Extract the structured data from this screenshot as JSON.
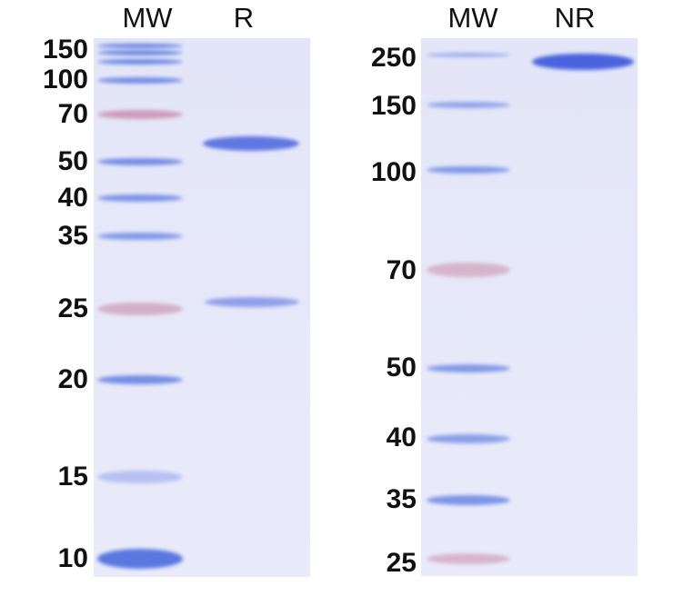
{
  "left_gel": {
    "lanes": [
      "MW",
      "R"
    ],
    "marker_labels": [
      "150",
      "100",
      "70",
      "50",
      "40",
      "35",
      "25",
      "20",
      "15",
      "10"
    ]
  },
  "right_gel": {
    "lanes": [
      "MW",
      "NR"
    ],
    "marker_labels": [
      "250",
      "150",
      "100",
      "70",
      "50",
      "40",
      "35",
      "25"
    ]
  },
  "colors": {
    "gel": "#e5e8f9",
    "band_blue": "#5a78e0",
    "band_pink": "#c88aa8",
    "sample_band": "#4a63de"
  }
}
